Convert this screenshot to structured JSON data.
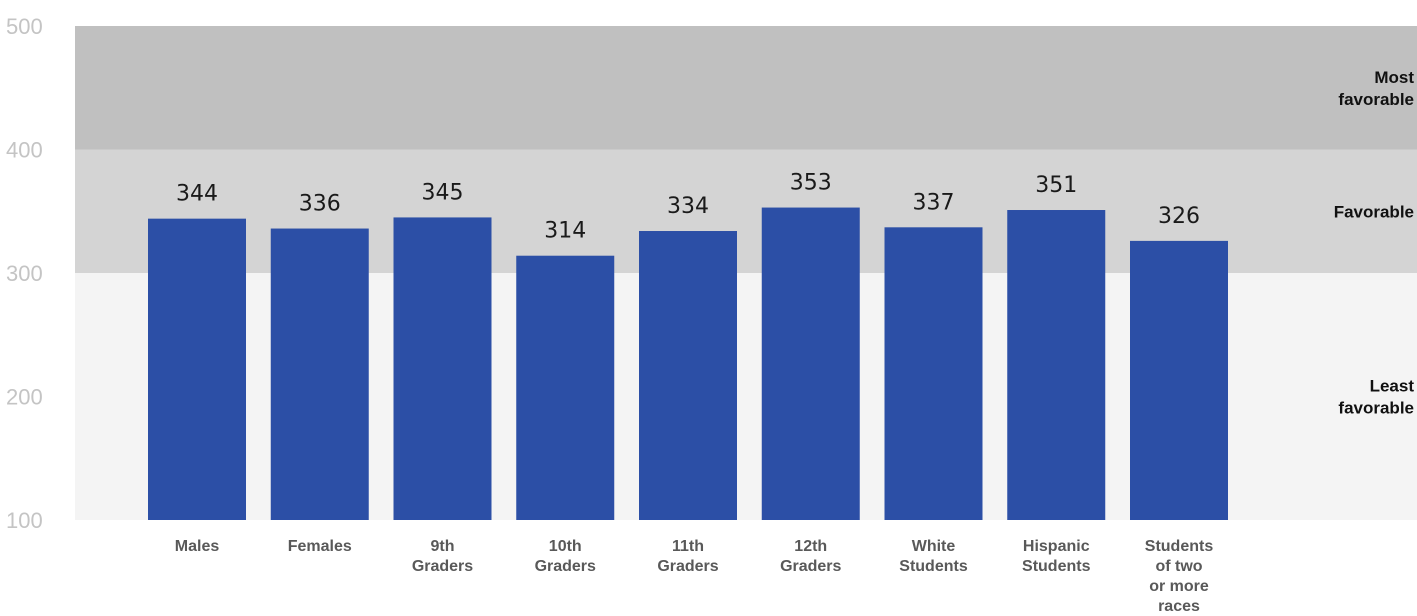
{
  "chart_data": {
    "type": "bar",
    "categories": [
      [
        "Males"
      ],
      [
        "Females"
      ],
      [
        "9th",
        "Graders"
      ],
      [
        "10th",
        "Graders"
      ],
      [
        "11th",
        "Graders"
      ],
      [
        "12th",
        "Graders"
      ],
      [
        "White",
        "Students"
      ],
      [
        "Hispanic",
        "Students"
      ],
      [
        "Students",
        "of two",
        "or more",
        "races"
      ]
    ],
    "values": [
      344,
      336,
      345,
      314,
      334,
      353,
      337,
      351,
      326
    ],
    "data_labels": [
      "344",
      "336",
      "345",
      "314",
      "334",
      "353",
      "337",
      "351",
      "326"
    ],
    "ylim": [
      100,
      500
    ],
    "yticks": [
      "100",
      "200",
      "300",
      "400",
      "500"
    ],
    "bands": [
      {
        "from": 100,
        "to": 300,
        "label": [
          "Least",
          "favorable"
        ],
        "color": "#f4f4f4"
      },
      {
        "from": 300,
        "to": 400,
        "label": [
          "Favorable"
        ],
        "color": "#d4d4d4"
      },
      {
        "from": 400,
        "to": 500,
        "label": [
          "Most",
          "favorable"
        ],
        "color": "#c0c0c0"
      }
    ],
    "bar_color": "#2c4fa6",
    "legend": "none",
    "grid": false
  }
}
